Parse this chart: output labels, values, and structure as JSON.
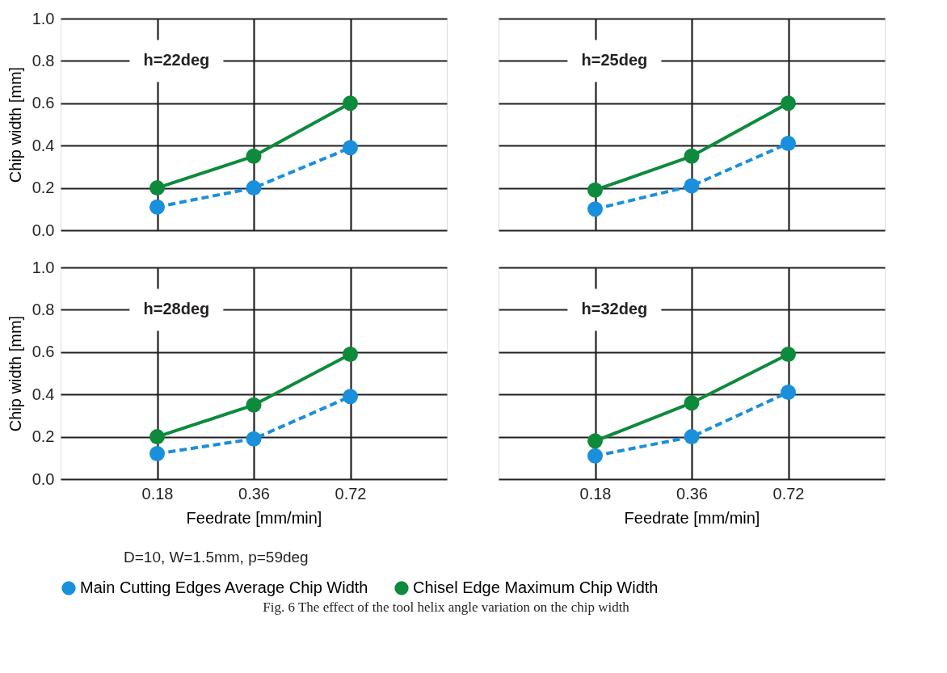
{
  "chart_data": [
    {
      "type": "line",
      "categories": [
        "0.18",
        "0.36",
        "0.72"
      ],
      "ylabel": "Chip width [mm]",
      "ylim": [
        0,
        1
      ],
      "yticks": [
        {
          "value": 0,
          "label": "0.0"
        },
        {
          "value": 0.2,
          "label": "0.2"
        },
        {
          "value": 0.4,
          "label": "0.4"
        },
        {
          "value": 0.6,
          "label": "0.6"
        },
        {
          "value": 0.8,
          "label": "0.8"
        },
        {
          "value": 1,
          "label": "1.0"
        }
      ],
      "grid": true,
      "tick_labels": "y",
      "marker": "circle",
      "legend": "bottom",
      "annotations": [
        "h=22deg"
      ],
      "series": [
        {
          "name": "Main Cutting Edges Average Chip Width",
          "color": "#1a8fdc",
          "line_style": "dashed",
          "values": [
            0.11,
            0.2,
            0.39
          ]
        },
        {
          "name": "Chisel Edge Maximum Chip Width",
          "color": "#0e8a3c",
          "line_style": "solid",
          "values": [
            0.2,
            0.35,
            0.6
          ]
        }
      ]
    },
    {
      "type": "line",
      "categories": [
        "0.18",
        "0.36",
        "0.72"
      ],
      "ylim": [
        0,
        1
      ],
      "yticks": [
        0,
        0.2,
        0.4,
        0.6,
        0.8,
        1
      ],
      "grid": true,
      "tick_labels": false,
      "marker": "circle",
      "legend": "bottom",
      "annotations": [
        "h=25deg"
      ],
      "series": [
        {
          "name": "Main Cutting Edges Average Chip Width",
          "color": "#1a8fdc",
          "line_style": "dashed",
          "values": [
            0.1,
            0.21,
            0.41
          ]
        },
        {
          "name": "Chisel Edge Maximum Chip Width",
          "color": "#0e8a3c",
          "line_style": "solid",
          "values": [
            0.19,
            0.35,
            0.6
          ]
        }
      ]
    },
    {
      "type": "line",
      "categories": [
        "0.18",
        "0.36",
        "0.72"
      ],
      "xlabel": "Feedrate [mm/min]",
      "ylabel": "Chip width [mm]",
      "ylim": [
        0,
        1
      ],
      "yticks": [
        {
          "value": 0,
          "label": "0.0"
        },
        {
          "value": 0.2,
          "label": "0.2"
        },
        {
          "value": 0.4,
          "label": "0.4"
        },
        {
          "value": 0.6,
          "label": "0.6"
        },
        {
          "value": 0.8,
          "label": "0.8"
        },
        {
          "value": 1,
          "label": "1.0"
        }
      ],
      "grid": true,
      "marker": "circle",
      "legend": "bottom",
      "annotations": [
        "h=28deg"
      ],
      "series": [
        {
          "name": "Main Cutting Edges Average Chip Width",
          "color": "#1a8fdc",
          "line_style": "dashed",
          "values": [
            0.12,
            0.19,
            0.39
          ]
        },
        {
          "name": "Chisel Edge Maximum Chip Width",
          "color": "#0e8a3c",
          "line_style": "solid",
          "values": [
            0.2,
            0.35,
            0.59
          ]
        }
      ]
    },
    {
      "type": "line",
      "categories": [
        "0.18",
        "0.36",
        "0.72"
      ],
      "xlabel": "Feedrate [mm/min]",
      "ylim": [
        0,
        1
      ],
      "yticks": [
        0,
        0.2,
        0.4,
        0.6,
        0.8,
        1
      ],
      "grid": true,
      "tick_labels": "x",
      "marker": "circle",
      "legend": "bottom",
      "annotations": [
        "h=32deg",
        "D=10, W=1.5mm, p=59deg",
        "Fig. 6 The effect of the tool helix angle variation on the chip width"
      ],
      "series": [
        {
          "name": "Main Cutting Edges Average Chip Width",
          "color": "#1a8fdc",
          "line_style": "dashed",
          "values": [
            0.11,
            0.2,
            0.41
          ]
        },
        {
          "name": "Chisel Edge Maximum Chip Width",
          "color": "#0e8a3c",
          "line_style": "solid",
          "values": [
            0.18,
            0.36,
            0.59
          ]
        }
      ]
    }
  ]
}
